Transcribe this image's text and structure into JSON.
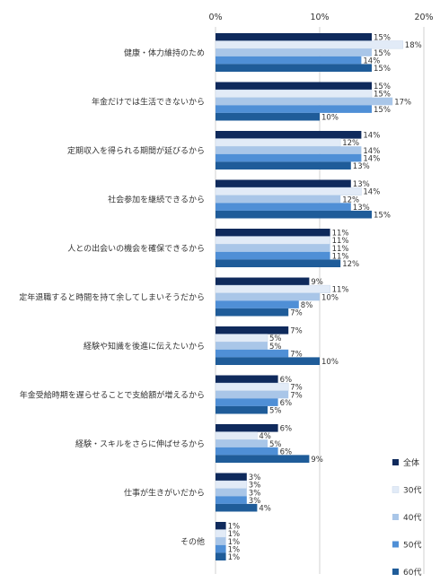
{
  "chart_data": {
    "type": "bar",
    "orientation": "horizontal",
    "categories": [
      "健康・体力維持のため",
      "年金だけでは生活できないから",
      "定期収入を得られる期間が延びるから",
      "社会参加を継続できるから",
      "人との出会いの機会を確保できるから",
      "定年退職すると時間を持て余してしまいそうだから",
      "経験や知識を後進に伝えたいから",
      "年金受給時期を遅らせることで支給額が増えるから",
      "経験・スキルをさらに伸ばせるから",
      "仕事が生きがいだから",
      "その他"
    ],
    "series": [
      {
        "name": "全体",
        "color": "#0f2a5c",
        "values": [
          15,
          15,
          14,
          13,
          11,
          9,
          7,
          6,
          6,
          3,
          1
        ]
      },
      {
        "name": "30代",
        "color": "#e2ebf7",
        "values": [
          18,
          15,
          12,
          14,
          11,
          11,
          5,
          7,
          4,
          3,
          1
        ]
      },
      {
        "name": "40代",
        "color": "#a9c6e8",
        "values": [
          15,
          17,
          14,
          12,
          11,
          10,
          5,
          7,
          5,
          3,
          1
        ]
      },
      {
        "name": "50代",
        "color": "#4f8fd6",
        "values": [
          14,
          15,
          14,
          13,
          11,
          8,
          7,
          6,
          6,
          3,
          1
        ]
      },
      {
        "name": "60代",
        "color": "#1f5c99",
        "values": [
          15,
          10,
          13,
          15,
          12,
          7,
          10,
          5,
          9,
          4,
          1
        ]
      }
    ],
    "value_suffix": "%",
    "xlim": [
      0,
      20
    ],
    "xticks": [
      0,
      10,
      20
    ],
    "xtick_labels": [
      "0%",
      "10%",
      "20%"
    ],
    "xaxis_position": "top",
    "grid": true,
    "legend_position": "bottom-right"
  }
}
